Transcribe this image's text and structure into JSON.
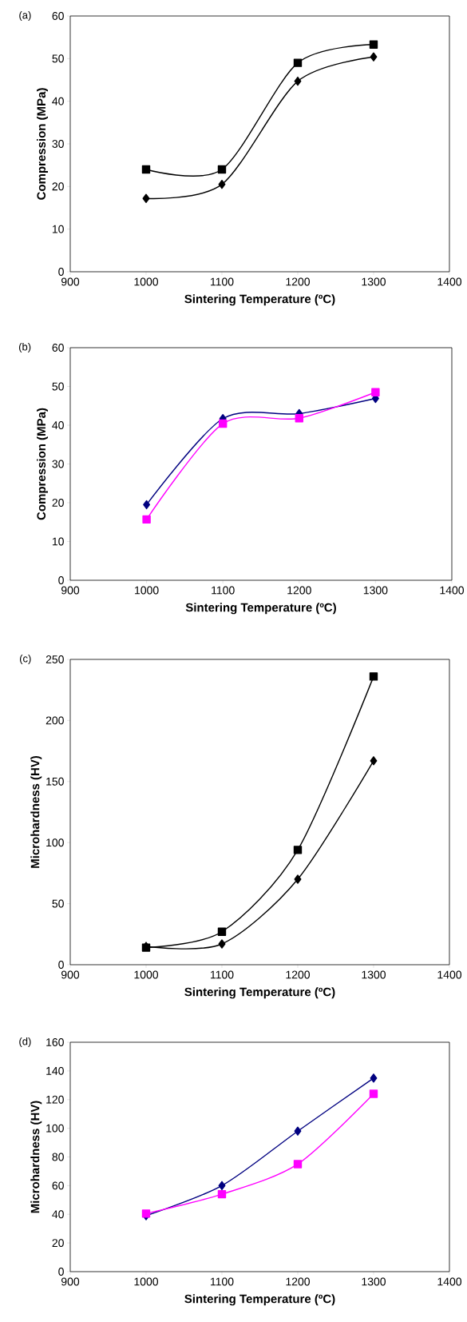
{
  "chart_data": [
    {
      "type": "line",
      "annotations": [
        "(a)"
      ],
      "xlabel": "Sintering Temperature (ºC)",
      "ylabel": "Compression (MPa)",
      "x": [
        1000,
        1100,
        1200,
        1300
      ],
      "series": [
        {
          "color": "#000000",
          "marker": "square",
          "values": [
            24,
            24,
            49,
            53.3
          ]
        },
        {
          "color": "#000000",
          "marker": "diamond",
          "values": [
            17.2,
            20.5,
            44.7,
            50.4
          ]
        }
      ],
      "xlim": [
        900,
        1400
      ],
      "xticks": [
        900,
        1000,
        1100,
        1200,
        1300,
        1400
      ],
      "ylim": [
        0,
        60
      ],
      "yticks": [
        0,
        10,
        20,
        30,
        40,
        50,
        60
      ],
      "line_style": "solid"
    },
    {
      "type": "line",
      "annotations": [
        "(b)"
      ],
      "xlabel": "Sintering Temperature (ºC)",
      "ylabel": "Compression (MPa)",
      "x": [
        1000,
        1100,
        1200,
        1300
      ],
      "series": [
        {
          "color": "#000080",
          "marker": "diamond",
          "values": [
            19.5,
            41.7,
            43,
            46.9
          ]
        },
        {
          "color": "#ff00ff",
          "marker": "square",
          "values": [
            15.7,
            40.4,
            41.8,
            48.5
          ]
        }
      ],
      "xlim": [
        900,
        1400
      ],
      "xticks": [
        900,
        1000,
        1100,
        1200,
        1300,
        1400
      ],
      "ylim": [
        0,
        60
      ],
      "yticks": [
        0,
        10,
        20,
        30,
        40,
        50,
        60
      ],
      "line_style": "solid"
    },
    {
      "type": "line",
      "annotations": [
        "(c)"
      ],
      "xlabel": "Sintering Temperature (ºC)",
      "ylabel": "Microhardness (HV)",
      "x": [
        1000,
        1100,
        1200,
        1300
      ],
      "series": [
        {
          "color": "#000000",
          "marker": "square",
          "values": [
            14,
            27,
            94,
            236
          ]
        },
        {
          "color": "#000000",
          "marker": "diamond",
          "values": [
            15,
            17,
            70,
            167
          ]
        }
      ],
      "xlim": [
        900,
        1400
      ],
      "xticks": [
        900,
        1000,
        1100,
        1200,
        1300,
        1400
      ],
      "ylim": [
        0,
        250
      ],
      "yticks": [
        0,
        50,
        100,
        150,
        200,
        250
      ],
      "line_style": "solid"
    },
    {
      "type": "line",
      "annotations": [
        "(d)"
      ],
      "xlabel": "Sintering Temperature (ºC)",
      "ylabel": "Microhardness (HV)",
      "x": [
        1000,
        1100,
        1200,
        1300
      ],
      "series": [
        {
          "color": "#000080",
          "marker": "diamond",
          "values": [
            39,
            60,
            98,
            135
          ]
        },
        {
          "color": "#ff00ff",
          "marker": "square",
          "values": [
            40.5,
            54,
            75,
            124
          ]
        }
      ],
      "xlim": [
        900,
        1400
      ],
      "xticks": [
        900,
        1000,
        1100,
        1200,
        1300,
        1400
      ],
      "ylim": [
        0,
        160
      ],
      "yticks": [
        0,
        20,
        40,
        60,
        80,
        100,
        120,
        140,
        160
      ],
      "line_style": "solid"
    }
  ]
}
